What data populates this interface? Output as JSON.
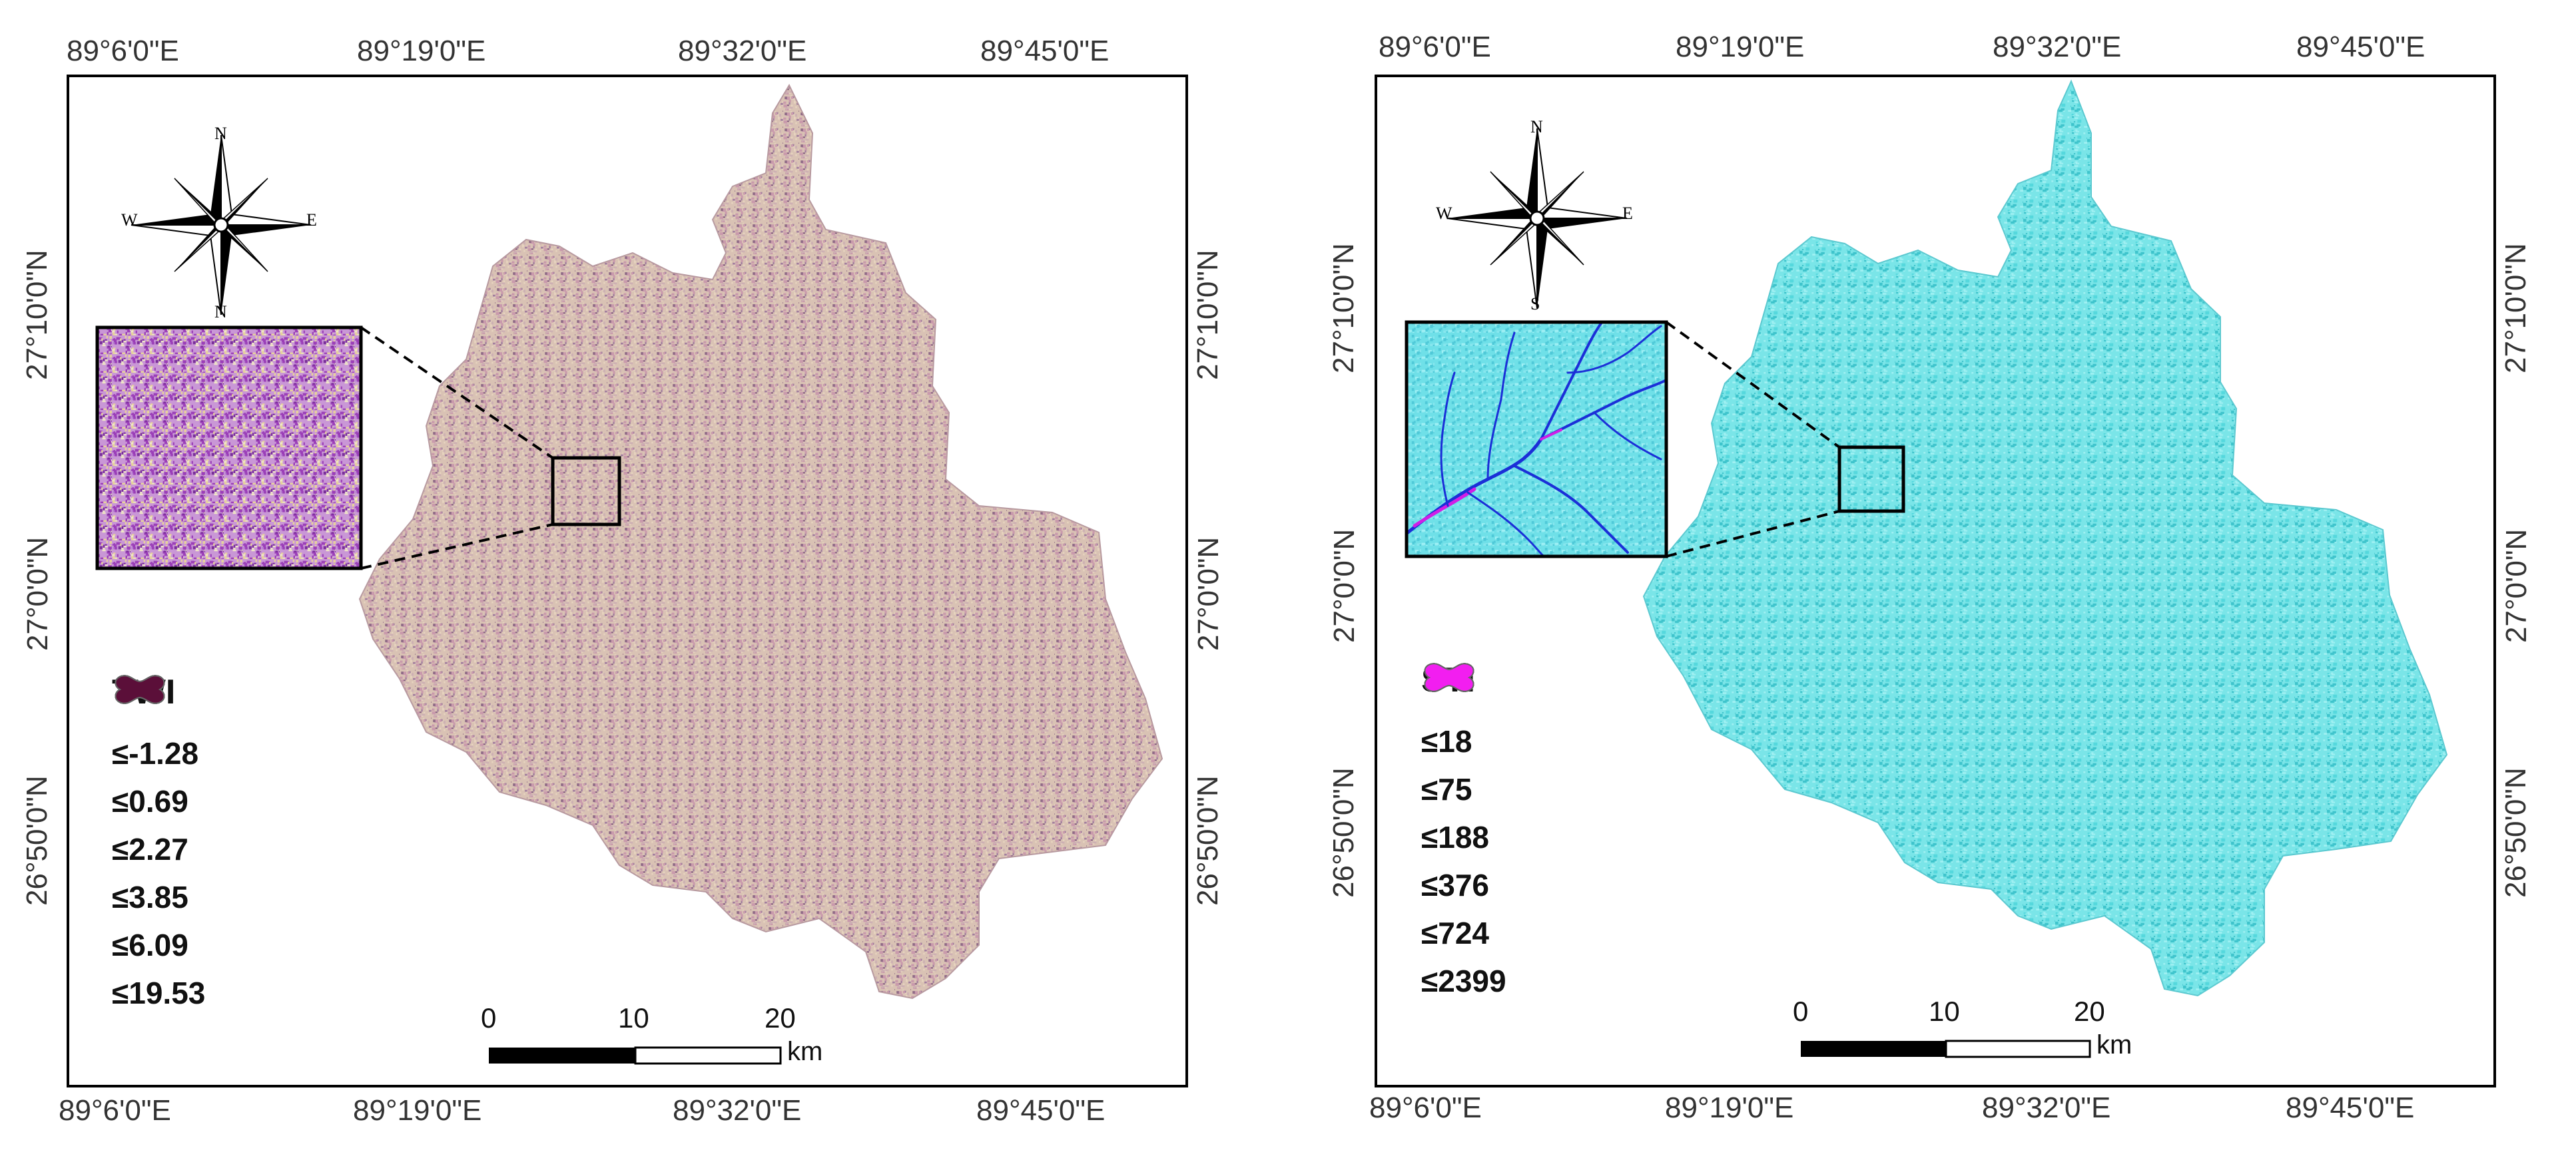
{
  "patterns": {
    "twi_map": [
      "#d9c2b4",
      "#c99aac",
      "#a07c9d",
      "#e7d4bf",
      "#8f6a86",
      "#cdb0b3"
    ],
    "twi_inset": [
      "#c997d6",
      "#9b3fb8",
      "#e7d39a",
      "#7a2f99",
      "#efe7c5",
      "#b67bd1"
    ],
    "sti_map": [
      "#7ae5e8",
      "#55d8dd",
      "#9ff0f2",
      "#3fc4cc"
    ],
    "sti_inset": [
      "#6fe0e8",
      "#4fc9d8",
      "#9ff0f5",
      "#87e6ee"
    ]
  },
  "panels": [
    {
      "name": "twi",
      "top_ticks": [
        "89°6'0\"E",
        "89°19'0\"E",
        "89°32'0\"E",
        "89°45'0\"E"
      ],
      "bottom_ticks": [
        "89°6'0\"E",
        "89°19'0\"E",
        "89°32'0\"E",
        "89°45'0\"E"
      ],
      "left_ticks": [
        "27°10'0\"N",
        "27°0'0\"N",
        "26°50'0\"N"
      ],
      "right_ticks": [
        "27°10'0\"N",
        "27°0'0\"N",
        "26°50'0\"N"
      ],
      "compass": {
        "n": "N",
        "s": "N",
        "e": "E",
        "w": "W"
      },
      "legend": {
        "title": "TWI",
        "items": [
          {
            "label": "≤-1.28",
            "color": "#f1a21c"
          },
          {
            "label": "≤0.69",
            "color": "#f4ee1c"
          },
          {
            "label": "≤2.27",
            "color": "#f0c8f0"
          },
          {
            "label": "≤3.85",
            "color": "#f08ad3"
          },
          {
            "label": "≤6.09",
            "color": "#e0158f"
          },
          {
            "label": "≤19.53",
            "color": "#5b0f39"
          }
        ]
      },
      "scale": {
        "labels": [
          "0",
          "10",
          "20"
        ],
        "unit": "km"
      },
      "map_color": "#d8bcb7"
    },
    {
      "name": "sti",
      "top_ticks": [
        "89°6'0\"E",
        "89°19'0\"E",
        "89°32'0\"E",
        "89°45'0\"E"
      ],
      "bottom_ticks": [
        "89°6'0\"E",
        "89°19'0\"E",
        "89°32'0\"E",
        "89°45'0\"E"
      ],
      "left_ticks": [
        "27°10'0\"N",
        "27°0'0\"N",
        "26°50'0\"N"
      ],
      "right_ticks": [
        "27°10'0\"N",
        "27°0'0\"N",
        "26°50'0\"N"
      ],
      "compass": {
        "n": "N",
        "s": "S",
        "e": "E",
        "w": "W"
      },
      "legend": {
        "title": "STI",
        "items": [
          {
            "label": "≤18",
            "color": "#15f0ee"
          },
          {
            "label": "≤75",
            "color": "#5fd6ee"
          },
          {
            "label": "≤188",
            "color": "#1a34e8"
          },
          {
            "label": "≤376",
            "color": "#0c1fa8"
          },
          {
            "label": "≤724",
            "color": "#b020e0"
          },
          {
            "label": "≤2399",
            "color": "#f21ef0"
          }
        ]
      },
      "scale": {
        "labels": [
          "0",
          "10",
          "20"
        ],
        "unit": "km"
      },
      "map_color": "#6fe1e6"
    }
  ]
}
